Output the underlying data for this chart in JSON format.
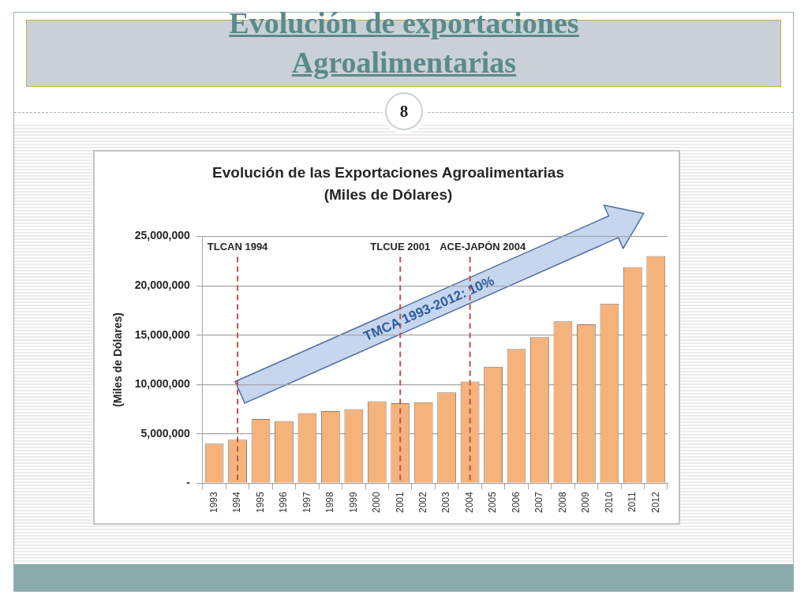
{
  "chart_data": {
    "type": "bar",
    "title": "Evolución de las Exportaciones Agroalimentarias",
    "subtitle": "(Miles de Dólares)",
    "ylabel": "(Miles de Dólares)",
    "categories": [
      "1993",
      "1994",
      "1995",
      "1996",
      "1997",
      "1998",
      "1999",
      "2000",
      "2001",
      "2002",
      "2003",
      "2004",
      "2005",
      "2006",
      "2007",
      "2008",
      "2009",
      "2010",
      "2011",
      "2012"
    ],
    "values": [
      4000000,
      4400000,
      6500000,
      6300000,
      7100000,
      7300000,
      7500000,
      8300000,
      8100000,
      8200000,
      9200000,
      10300000,
      11800000,
      13600000,
      14800000,
      16400000,
      16100000,
      18200000,
      21900000,
      23000000
    ],
    "color": "#f5b27a",
    "ylim": [
      0,
      25000000
    ],
    "yticks": [
      {
        "value": 0,
        "label": "-"
      },
      {
        "value": 5000000,
        "label": "5,000,000"
      },
      {
        "value": 10000000,
        "label": "10,000,000"
      },
      {
        "value": 15000000,
        "label": "15,000,000"
      },
      {
        "value": 20000000,
        "label": "20,000,000"
      },
      {
        "value": 25000000,
        "label": "25,000,000"
      }
    ],
    "grid": "y",
    "ref_lines": [
      {
        "axis": "x",
        "value": "1994",
        "label": "TLCAN 1994",
        "color": "#c0504d",
        "line_style": "dashed"
      },
      {
        "axis": "x",
        "value": "2001",
        "label": "TLCUE 2001",
        "color": "#c0504d",
        "line_style": "dashed"
      },
      {
        "axis": "x",
        "value": "2004",
        "label": "ACE-JAPÓN 2004",
        "color": "#c0504d",
        "line_style": "dashed"
      }
    ],
    "annotations": [
      "Evolución de exportaciones Agroalimentarias",
      "8",
      "TMCA 1993-2012: 10%"
    ]
  }
}
